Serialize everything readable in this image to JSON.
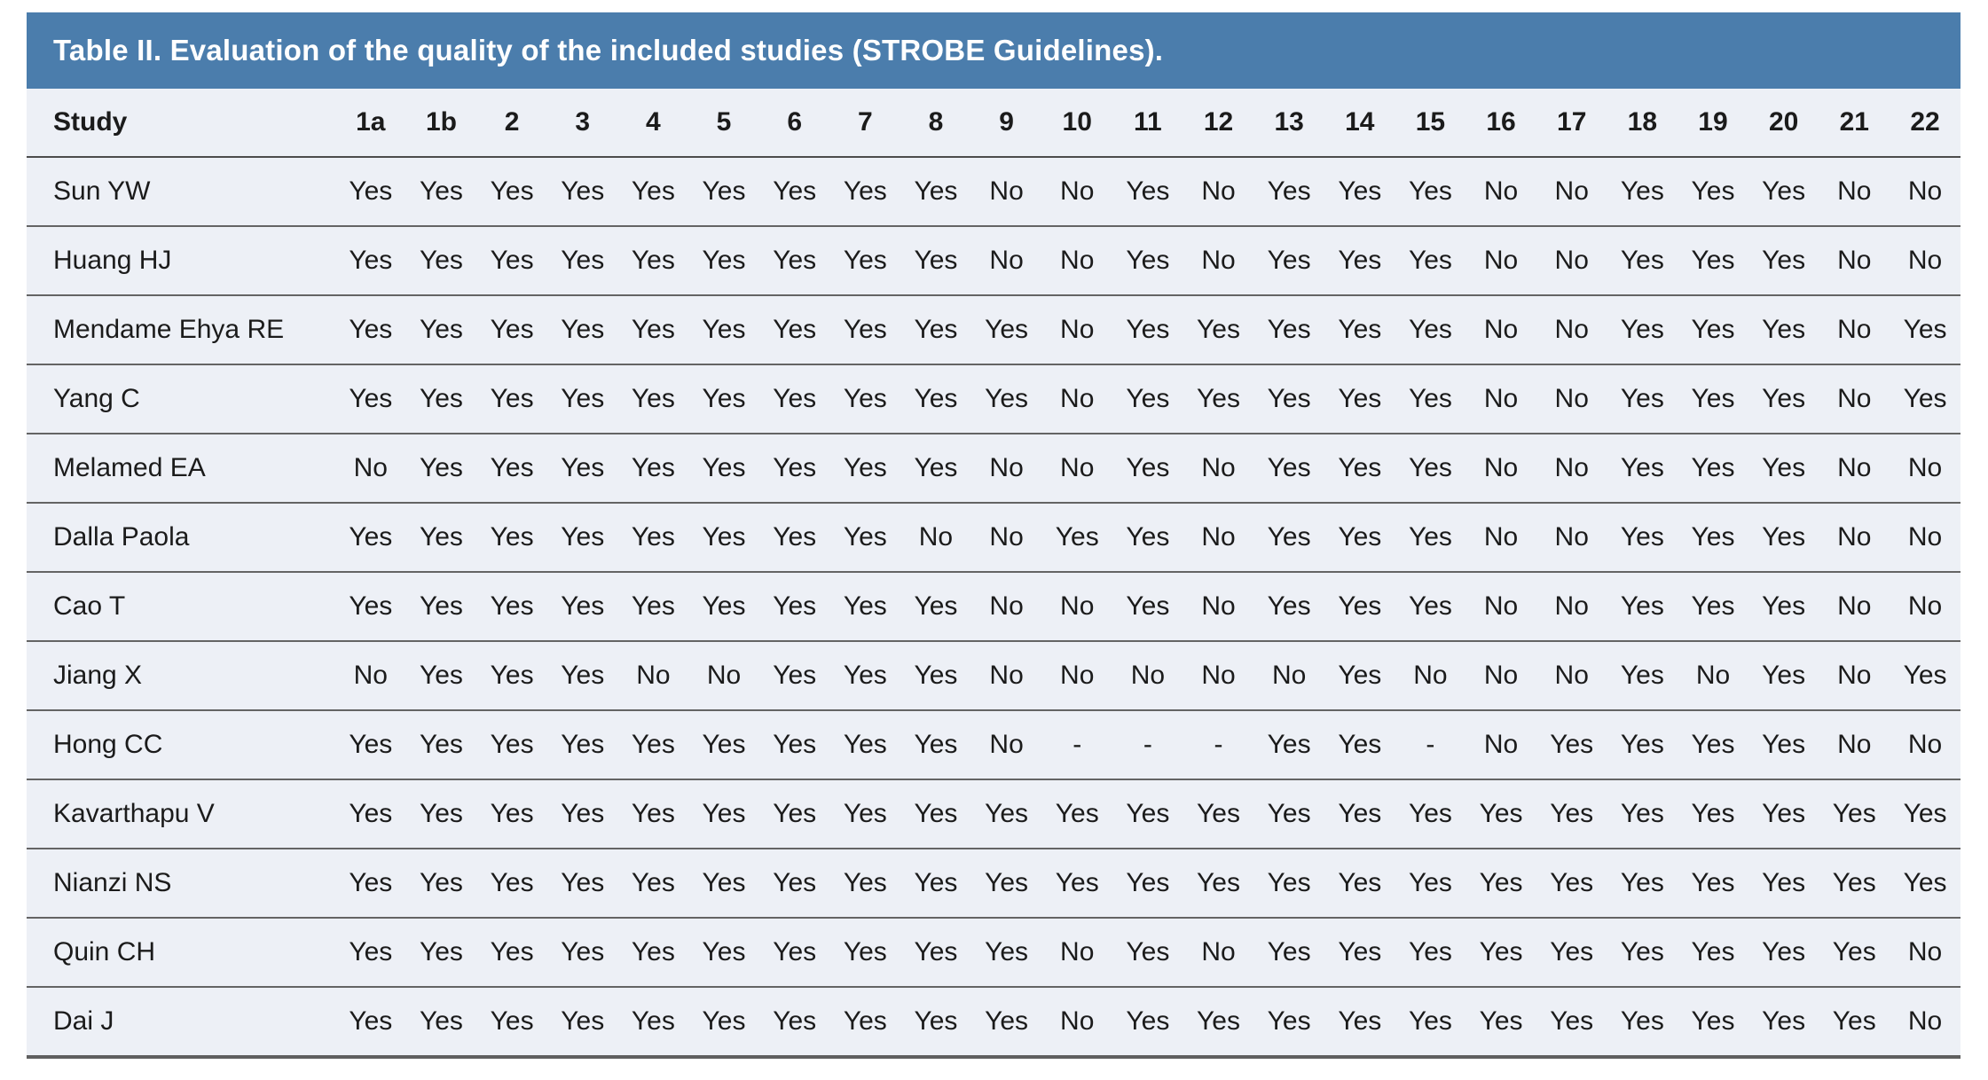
{
  "table": {
    "title": "Table II. Evaluation of the quality of the included studies (STROBE Guidelines).",
    "columns": [
      "Study",
      "1a",
      "1b",
      "2",
      "3",
      "4",
      "5",
      "6",
      "7",
      "8",
      "9",
      "10",
      "11",
      "12",
      "13",
      "14",
      "15",
      "16",
      "17",
      "18",
      "19",
      "20",
      "21",
      "22"
    ],
    "rows": [
      {
        "study": "Sun YW",
        "values": [
          "Yes",
          "Yes",
          "Yes",
          "Yes",
          "Yes",
          "Yes",
          "Yes",
          "Yes",
          "Yes",
          "No",
          "No",
          "Yes",
          "No",
          "Yes",
          "Yes",
          "Yes",
          "No",
          "No",
          "Yes",
          "Yes",
          "Yes",
          "No",
          "No"
        ]
      },
      {
        "study": "Huang HJ",
        "values": [
          "Yes",
          "Yes",
          "Yes",
          "Yes",
          "Yes",
          "Yes",
          "Yes",
          "Yes",
          "Yes",
          "No",
          "No",
          "Yes",
          "No",
          "Yes",
          "Yes",
          "Yes",
          "No",
          "No",
          "Yes",
          "Yes",
          "Yes",
          "No",
          "No"
        ]
      },
      {
        "study": "Mendame Ehya RE",
        "values": [
          "Yes",
          "Yes",
          "Yes",
          "Yes",
          "Yes",
          "Yes",
          "Yes",
          "Yes",
          "Yes",
          "Yes",
          "No",
          "Yes",
          "Yes",
          "Yes",
          "Yes",
          "Yes",
          "No",
          "No",
          "Yes",
          "Yes",
          "Yes",
          "No",
          "Yes"
        ]
      },
      {
        "study": "Yang C",
        "values": [
          "Yes",
          "Yes",
          "Yes",
          "Yes",
          "Yes",
          "Yes",
          "Yes",
          "Yes",
          "Yes",
          "Yes",
          "No",
          "Yes",
          "Yes",
          "Yes",
          "Yes",
          "Yes",
          "No",
          "No",
          "Yes",
          "Yes",
          "Yes",
          "No",
          "Yes"
        ]
      },
      {
        "study": "Melamed EA",
        "values": [
          "No",
          "Yes",
          "Yes",
          "Yes",
          "Yes",
          "Yes",
          "Yes",
          "Yes",
          "Yes",
          "No",
          "No",
          "Yes",
          "No",
          "Yes",
          "Yes",
          "Yes",
          "No",
          "No",
          "Yes",
          "Yes",
          "Yes",
          "No",
          "No"
        ]
      },
      {
        "study": "Dalla Paola",
        "values": [
          "Yes",
          "Yes",
          "Yes",
          "Yes",
          "Yes",
          "Yes",
          "Yes",
          "Yes",
          "No",
          "No",
          "Yes",
          "Yes",
          "No",
          "Yes",
          "Yes",
          "Yes",
          "No",
          "No",
          "Yes",
          "Yes",
          "Yes",
          "No",
          "No"
        ]
      },
      {
        "study": "Cao T",
        "values": [
          "Yes",
          "Yes",
          "Yes",
          "Yes",
          "Yes",
          "Yes",
          "Yes",
          "Yes",
          "Yes",
          "No",
          "No",
          "Yes",
          "No",
          "Yes",
          "Yes",
          "Yes",
          "No",
          "No",
          "Yes",
          "Yes",
          "Yes",
          "No",
          "No"
        ]
      },
      {
        "study": "Jiang X",
        "values": [
          "No",
          "Yes",
          "Yes",
          "Yes",
          "No",
          "No",
          "Yes",
          "Yes",
          "Yes",
          "No",
          "No",
          "No",
          "No",
          "No",
          "Yes",
          "No",
          "No",
          "No",
          "Yes",
          "No",
          "Yes",
          "No",
          "Yes"
        ]
      },
      {
        "study": "Hong CC",
        "values": [
          "Yes",
          "Yes",
          "Yes",
          "Yes",
          "Yes",
          "Yes",
          "Yes",
          "Yes",
          "Yes",
          "No",
          "-",
          "-",
          "-",
          "Yes",
          "Yes",
          "-",
          "No",
          "Yes",
          "Yes",
          "Yes",
          "Yes",
          "No",
          "No"
        ]
      },
      {
        "study": "Kavarthapu V",
        "values": [
          "Yes",
          "Yes",
          "Yes",
          "Yes",
          "Yes",
          "Yes",
          "Yes",
          "Yes",
          "Yes",
          "Yes",
          "Yes",
          "Yes",
          "Yes",
          "Yes",
          "Yes",
          "Yes",
          "Yes",
          "Yes",
          "Yes",
          "Yes",
          "Yes",
          "Yes",
          "Yes"
        ]
      },
      {
        "study": "Nianzi NS",
        "values": [
          "Yes",
          "Yes",
          "Yes",
          "Yes",
          "Yes",
          "Yes",
          "Yes",
          "Yes",
          "Yes",
          "Yes",
          "Yes",
          "Yes",
          "Yes",
          "Yes",
          "Yes",
          "Yes",
          "Yes",
          "Yes",
          "Yes",
          "Yes",
          "Yes",
          "Yes",
          "Yes"
        ]
      },
      {
        "study": "Quin CH",
        "values": [
          "Yes",
          "Yes",
          "Yes",
          "Yes",
          "Yes",
          "Yes",
          "Yes",
          "Yes",
          "Yes",
          "Yes",
          "No",
          "Yes",
          "No",
          "Yes",
          "Yes",
          "Yes",
          "Yes",
          "Yes",
          "Yes",
          "Yes",
          "Yes",
          "Yes",
          "No"
        ]
      },
      {
        "study": "Dai J",
        "values": [
          "Yes",
          "Yes",
          "Yes",
          "Yes",
          "Yes",
          "Yes",
          "Yes",
          "Yes",
          "Yes",
          "Yes",
          "No",
          "Yes",
          "Yes",
          "Yes",
          "Yes",
          "Yes",
          "Yes",
          "Yes",
          "Yes",
          "Yes",
          "Yes",
          "Yes",
          "No"
        ]
      }
    ]
  },
  "colors": {
    "header_bg": "#4b7dac",
    "row_bg": "#edf0f6",
    "title_text": "#ffffff",
    "body_text": "#1b1b1b",
    "rule": "#5f5f5f"
  }
}
